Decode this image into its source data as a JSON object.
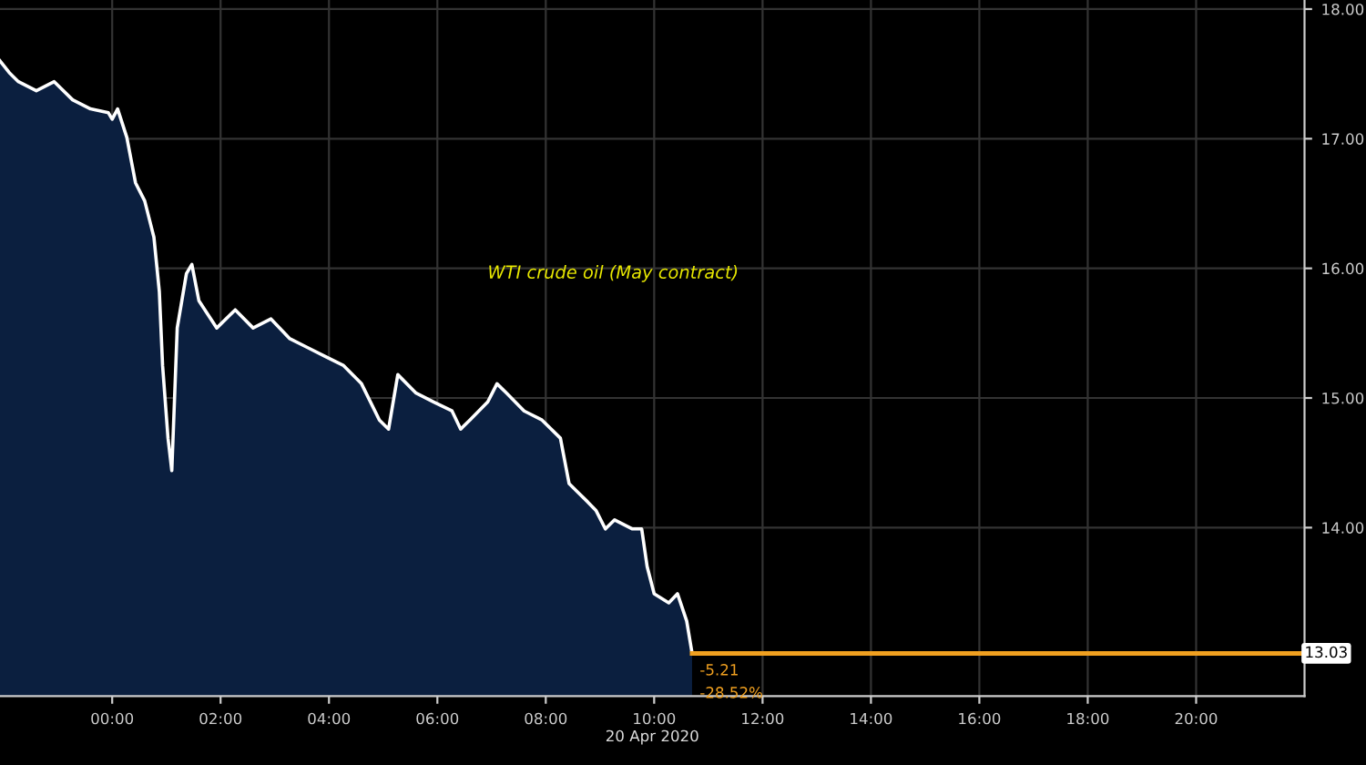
{
  "chart_data": {
    "type": "area",
    "xlabel": "20 Apr 2020",
    "series": [
      {
        "color": "#ffffff",
        "x": [
          -2.07,
          -1.9,
          -1.73,
          -1.4,
          -1.07,
          -0.73,
          -0.4,
          -0.07,
          0.0,
          0.1,
          0.27,
          0.43,
          0.6,
          0.77,
          0.87,
          0.93,
          1.03,
          1.1,
          1.2,
          1.37,
          1.47,
          1.6,
          1.93,
          2.27,
          2.6,
          2.93,
          3.27,
          3.6,
          3.93,
          4.27,
          4.6,
          4.93,
          5.1,
          5.27,
          5.6,
          5.93,
          6.27,
          6.43,
          6.6,
          6.93,
          7.1,
          7.27,
          7.6,
          7.93,
          8.27,
          8.43,
          8.6,
          8.77,
          8.93,
          9.1,
          9.27,
          9.6,
          9.77,
          9.87,
          10.0,
          10.27,
          10.43,
          10.6,
          10.7
        ],
        "values": [
          17.6,
          17.51,
          17.44,
          17.37,
          17.44,
          17.3,
          17.23,
          17.2,
          17.15,
          17.23,
          17.01,
          16.66,
          16.52,
          16.24,
          15.82,
          15.25,
          14.69,
          14.44,
          15.54,
          15.96,
          16.03,
          15.75,
          15.54,
          15.68,
          15.54,
          15.61,
          15.46,
          15.39,
          15.32,
          15.25,
          15.11,
          14.83,
          14.76,
          15.18,
          15.04,
          14.97,
          14.9,
          14.76,
          14.83,
          14.97,
          15.11,
          15.04,
          14.9,
          14.83,
          14.69,
          14.34,
          14.27,
          14.2,
          14.13,
          13.99,
          14.06,
          13.99,
          13.99,
          13.7,
          13.49,
          13.42,
          13.49,
          13.28,
          13.03
        ]
      },
      {
        "type": "line",
        "color": "#f0a020",
        "x": [
          10.7,
          22.0
        ],
        "values": [
          13.03,
          13.03
        ]
      }
    ],
    "xlim": [
      -2.07,
      22.0
    ],
    "ylim": [
      12.7,
      18.07
    ],
    "xticks": [
      {
        "value": 0,
        "label": "00:00"
      },
      {
        "value": 2,
        "label": "02:00"
      },
      {
        "value": 4,
        "label": "04:00"
      },
      {
        "value": 6,
        "label": "06:00"
      },
      {
        "value": 8,
        "label": "08:00"
      },
      {
        "value": 10,
        "label": "10:00"
      },
      {
        "value": 12,
        "label": "12:00"
      },
      {
        "value": 14,
        "label": "14:00"
      },
      {
        "value": 16,
        "label": "16:00"
      },
      {
        "value": 18,
        "label": "18:00"
      },
      {
        "value": 20,
        "label": "20:00"
      }
    ],
    "yticks": [
      {
        "value": 14,
        "label": "14.00"
      },
      {
        "value": 15,
        "label": "15.00"
      },
      {
        "value": 16,
        "label": "16.00"
      },
      {
        "value": 17,
        "label": "17.00"
      },
      {
        "value": 18,
        "label": "18.00"
      }
    ],
    "grid": true,
    "annotations": [
      "WTI crude oil (May contract)",
      "-5.21",
      "-28.52%",
      "13.03"
    ]
  }
}
